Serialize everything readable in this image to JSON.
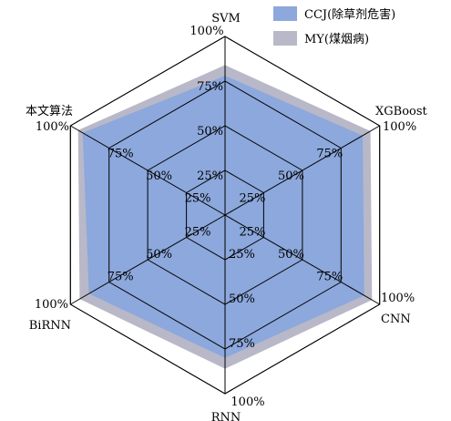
{
  "chart_data": {
    "type": "radar",
    "axes": [
      "SVM",
      "XGBoost",
      "CNN",
      "RNN",
      "BiRNN",
      "本文算法"
    ],
    "tick_levels": [
      25,
      50,
      75,
      100
    ],
    "tick_labels": [
      "25%",
      "50%",
      "75%",
      "100%"
    ],
    "range": [
      0,
      100
    ],
    "series": [
      {
        "name": "MY(煤烟病)",
        "color": "#b8b8c8",
        "values": [
          84,
          94,
          95,
          86,
          94,
          95
        ]
      },
      {
        "name": "CCJ(除草剂危害)",
        "color": "#8ca8dc",
        "values": [
          78,
          89,
          90,
          80,
          88,
          92
        ]
      }
    ],
    "legend": [
      {
        "label": "CCJ(除草剂危害)",
        "color": "#8ca8dc"
      },
      {
        "label": "MY(煤烟病)",
        "color": "#b8b8c8"
      }
    ],
    "legend_position": "top-right",
    "grid": true
  }
}
